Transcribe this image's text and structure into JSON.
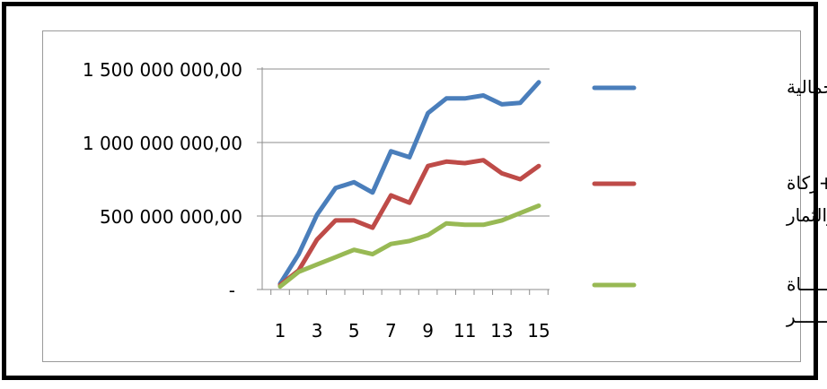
{
  "chart_data": {
    "type": "line",
    "x": [
      1,
      2,
      3,
      4,
      5,
      6,
      7,
      8,
      9,
      10,
      11,
      12,
      13,
      14,
      15
    ],
    "xtick_labels": [
      "1",
      "3",
      "5",
      "7",
      "9",
      "11",
      "13",
      "15"
    ],
    "xtick_values": [
      1,
      3,
      5,
      7,
      9,
      11,
      13,
      15
    ],
    "ylim": [
      0,
      1500000000
    ],
    "ytick_values": [
      0,
      500000000,
      1000000000,
      1500000000
    ],
    "ytick_labels": [
      "-",
      "500 000 000,00",
      "1 000 000 000,00",
      "1 500 000 000,00"
    ],
    "grid": true,
    "legend_position": "right",
    "series": [
      {
        "name": "الحصيلة الاجمالية",
        "name_lines": [
          "الحصيلة الاجمالية"
        ],
        "color": "#4a7ebb",
        "values": [
          40000000,
          240000000,
          510000000,
          690000000,
          730000000,
          660000000,
          940000000,
          900000000,
          1200000000,
          1300000000,
          1300000000,
          1320000000,
          1260000000,
          1270000000,
          1410000000
        ]
      },
      {
        "name": "زكاة المال +زكاة الزروع والثمار",
        "name_lines": [
          "زكاة المال +زكاة",
          "الزروع والثمار"
        ],
        "color": "#be4b48",
        "values": [
          30000000,
          130000000,
          340000000,
          470000000,
          470000000,
          420000000,
          640000000,
          590000000,
          840000000,
          870000000,
          860000000,
          880000000,
          790000000,
          750000000,
          840000000
        ]
      },
      {
        "name": "زكـــــــاة الفطـــــــــر",
        "name_lines": [
          "زكـــــــاة",
          "الفطـــــــــر"
        ],
        "color": "#98b954",
        "values": [
          20000000,
          120000000,
          170000000,
          220000000,
          270000000,
          240000000,
          310000000,
          330000000,
          370000000,
          450000000,
          440000000,
          440000000,
          470000000,
          520000000,
          570000000
        ]
      }
    ]
  }
}
